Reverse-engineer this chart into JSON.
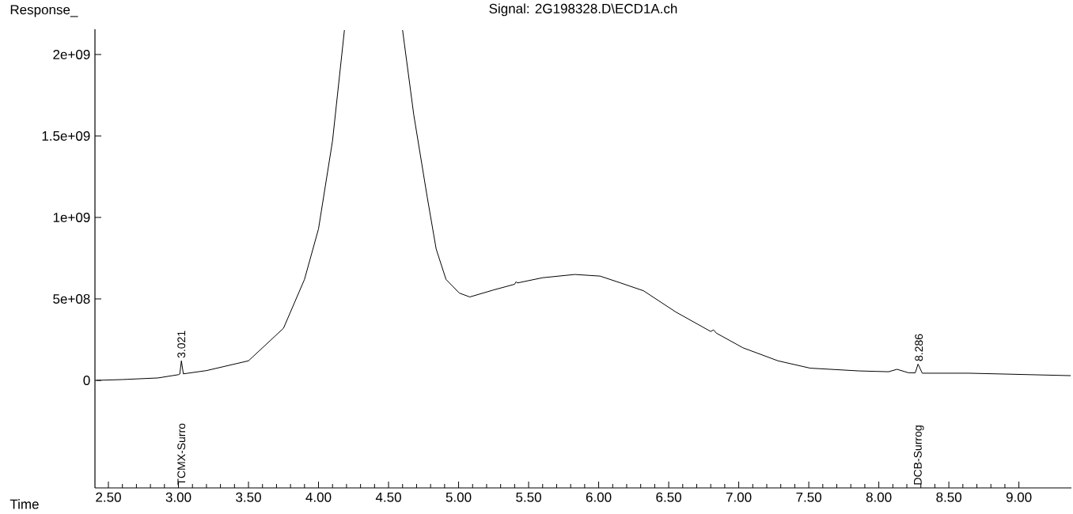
{
  "chart_data": {
    "type": "line",
    "title": "Signal: 2G198328.D\\ECD1A.ch",
    "xlabel": "Time",
    "ylabel": "Response_",
    "color": "#000000",
    "x": [
      2.415,
      2.6,
      2.855,
      3.0,
      3.01,
      3.021,
      3.035,
      3.2,
      3.5,
      3.75,
      3.9,
      4.0,
      4.1,
      4.185,
      4.4,
      4.6,
      4.68,
      4.775,
      4.84,
      4.91,
      5.005,
      5.08,
      5.25,
      5.4,
      5.41,
      5.42,
      5.6,
      5.83,
      6.01,
      6.15,
      6.32,
      6.55,
      6.8,
      6.82,
      6.84,
      7.03,
      7.28,
      7.51,
      7.86,
      8.07,
      8.13,
      8.21,
      8.26,
      8.28,
      8.31,
      8.64,
      9.37
    ],
    "values": [
      0,
      5000000,
      15000000,
      35000000,
      39000000,
      120000000,
      40000000,
      60000000,
      120000000,
      320000000,
      620000000,
      930000000,
      1470000000,
      2150000000,
      null,
      2150000000,
      1630000000,
      1130000000,
      806000000,
      620000000,
      536000000,
      512000000,
      555000000,
      590000000,
      605000000,
      598000000,
      630000000,
      650000000,
      640000000,
      600000000,
      550000000,
      420000000,
      300000000,
      310000000,
      290000000,
      200000000,
      120000000,
      75000000,
      58000000,
      53000000,
      68000000,
      47000000,
      46000000,
      100000000,
      44000000,
      44000000,
      29000000
    ],
    "xlim": [
      2.404,
      9.375
    ],
    "ylim": [
      -660000000,
      2155000000
    ],
    "xticks": [
      {
        "value": 2.5,
        "label": "2.50"
      },
      {
        "value": 3.0,
        "label": "3.00"
      },
      {
        "value": 3.5,
        "label": "3.50"
      },
      {
        "value": 4.0,
        "label": "4.00"
      },
      {
        "value": 4.5,
        "label": "4.50"
      },
      {
        "value": 5.0,
        "label": "5.00"
      },
      {
        "value": 5.5,
        "label": "5.50"
      },
      {
        "value": 6.0,
        "label": "6.00"
      },
      {
        "value": 6.5,
        "label": "6.50"
      },
      {
        "value": 7.0,
        "label": "7.00"
      },
      {
        "value": 7.5,
        "label": "7.50"
      },
      {
        "value": 8.0,
        "label": "8.00"
      },
      {
        "value": 8.5,
        "label": "8.50"
      },
      {
        "value": 9.0,
        "label": "9.00"
      }
    ],
    "yticks": [
      0,
      {
        "value": 500000000,
        "label": "5e+08"
      },
      {
        "value": 1000000000,
        "label": "1e+09"
      },
      {
        "value": 1500000000,
        "label": "1.5e+09"
      },
      {
        "value": 2000000000,
        "label": "2e+09"
      }
    ],
    "annotations": [
      {
        "text": "3.021",
        "x": 3.021,
        "y": 120000000
      },
      {
        "text": "8.286",
        "x": 8.286,
        "y": 100000000
      },
      "TCMX-Surro",
      "DCB-Surrog"
    ]
  }
}
